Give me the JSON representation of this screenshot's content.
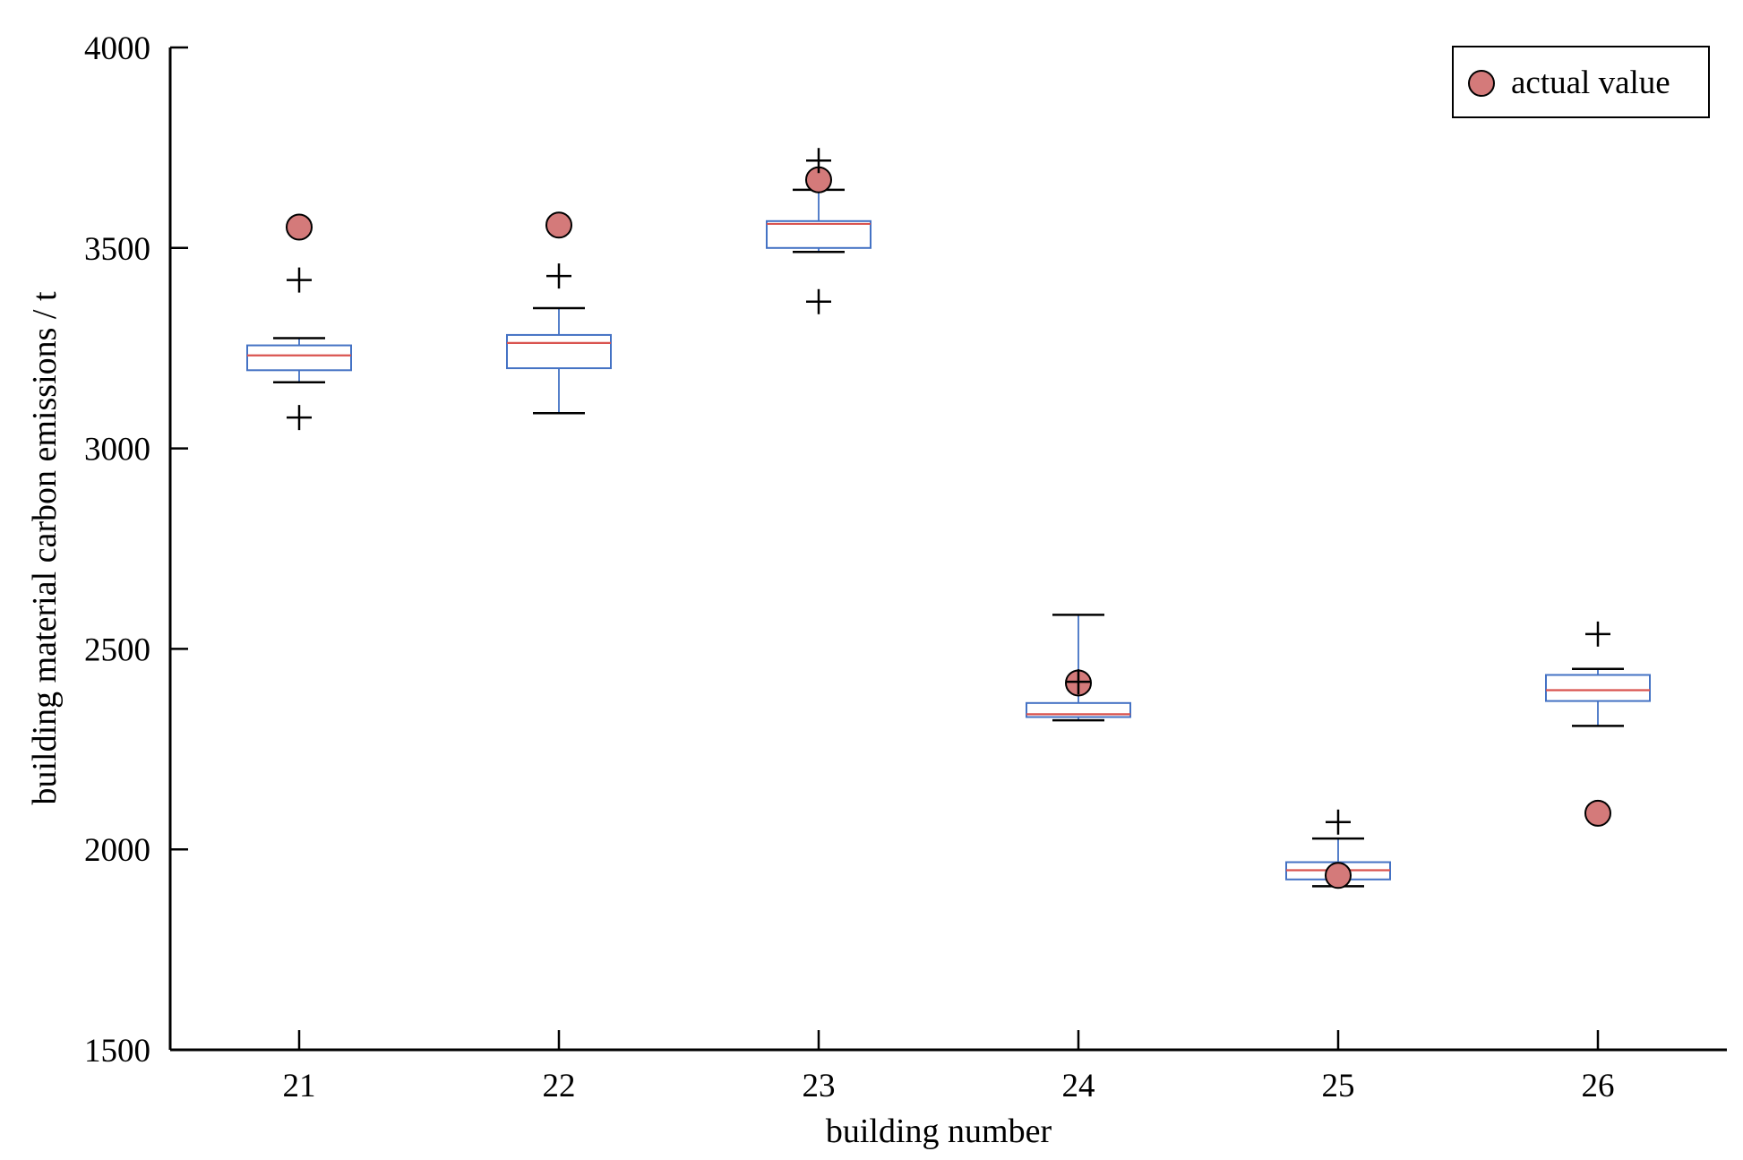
{
  "chart_data": {
    "type": "box",
    "title": "",
    "xlabel": "building number",
    "ylabel": "building material carbon emissions / t",
    "ylim": [
      1500,
      4000
    ],
    "yticks": [
      1500,
      2000,
      2500,
      3000,
      3500,
      4000
    ],
    "y_tick_labels": [
      "1500",
      "2000",
      "2500",
      "3000",
      "3500",
      "4000"
    ],
    "categories": [
      "21",
      "22",
      "23",
      "24",
      "25",
      "26"
    ],
    "legend": {
      "position": "top-right",
      "label": "actual value"
    },
    "colors": {
      "box": "#4472c4",
      "median": "#d9534f",
      "whisker_cap": "#000000",
      "outlier": "#000000",
      "actual_fill": "#d47a7a",
      "actual_stroke": "#000000",
      "axis": "#000000"
    },
    "boxes": [
      {
        "category": "21",
        "q1": 3195,
        "median": 3232,
        "q3": 3257,
        "whisker_low": 3165,
        "whisker_high": 3275,
        "outliers": [
          3077,
          3420
        ],
        "actual": 3552
      },
      {
        "category": "22",
        "q1": 3200,
        "median": 3263,
        "q3": 3283,
        "whisker_low": 3088,
        "whisker_high": 3350,
        "outliers": [
          3430
        ],
        "actual": 3557
      },
      {
        "category": "23",
        "q1": 3500,
        "median": 3560,
        "q3": 3567,
        "whisker_low": 3490,
        "whisker_high": 3645,
        "outliers": [
          3366,
          3718
        ],
        "actual": 3670
      },
      {
        "category": "24",
        "q1": 2330,
        "median": 2337,
        "q3": 2365,
        "whisker_low": 2322,
        "whisker_high": 2585,
        "outliers": [
          2418
        ],
        "actual": 2415
      },
      {
        "category": "25",
        "q1": 1925,
        "median": 1948,
        "q3": 1968,
        "whisker_low": 1908,
        "whisker_high": 2027,
        "outliers": [
          2068
        ],
        "actual": 1935
      },
      {
        "category": "26",
        "q1": 2370,
        "median": 2397,
        "q3": 2435,
        "whisker_low": 2308,
        "whisker_high": 2450,
        "outliers": [
          2537
        ],
        "actual": 2090
      }
    ]
  }
}
